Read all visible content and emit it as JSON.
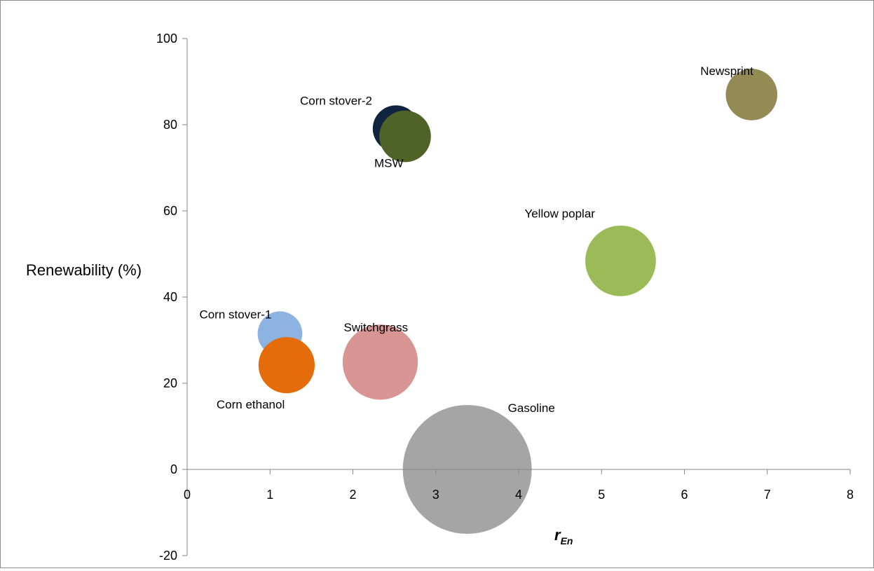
{
  "chart_data": {
    "type": "bubble",
    "title": "",
    "xlabel": "r",
    "xlabel_subscript": "En",
    "ylabel": "Renewability (%)",
    "xlim": [
      0,
      8
    ],
    "ylim": [
      -20,
      100
    ],
    "x_ticks": [
      0,
      1,
      2,
      3,
      4,
      5,
      6,
      7,
      8
    ],
    "y_ticks": [
      -20,
      0,
      20,
      40,
      60,
      80,
      100
    ],
    "grid": false,
    "legend": "none",
    "points": [
      {
        "label": "Corn stover-1",
        "x": 1.12,
        "y": 31.5,
        "size": 0.12,
        "color": "#8db3e2"
      },
      {
        "label": "Corn ethanol",
        "x": 1.2,
        "y": 24.2,
        "size": 0.19,
        "color": "#e46c0a"
      },
      {
        "label": "Switchgrass",
        "x": 2.33,
        "y": 24.9,
        "size": 0.34,
        "color": "#d99594"
      },
      {
        "label": "Corn stover-2",
        "x": 2.52,
        "y": 79.1,
        "size": 0.13,
        "color": "#0f243e"
      },
      {
        "label": "MSW",
        "x": 2.63,
        "y": 77.3,
        "size": 0.16,
        "color": "#4f6228"
      },
      {
        "label": "Gasoline",
        "x": 3.38,
        "y": 0,
        "size": 1.0,
        "color": "#a5a5a5"
      },
      {
        "label": "Yellow poplar",
        "x": 5.23,
        "y": 48.4,
        "size": 0.3,
        "color": "#9bbb59"
      },
      {
        "label": "Newsprint",
        "x": 6.81,
        "y": 87,
        "size": 0.16,
        "color": "#948a54"
      }
    ]
  }
}
